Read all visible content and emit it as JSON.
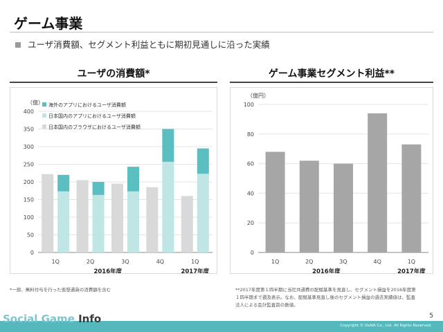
{
  "page": {
    "title": "ゲーム事業",
    "bullet": "ユーザ消費額、セグメント利益ともに期初見通しに沿った実績",
    "page_number": "5",
    "copyright": "Copyright © DeNA Co., Ltd. All Rights Reserved.",
    "watermark_part1": "Social Game ",
    "watermark_part2": "Info"
  },
  "left_panel": {
    "title": "ユーザの消費額*",
    "note": "*一部、無料付与を行った仮想通貨の消費額を含む"
  },
  "right_panel": {
    "title": "ゲーム事業セグメント利益**",
    "note_line1": "**2017年度第１四半期に当社共通費の配賦基準を見直し、セグメント損益を2016年度第",
    "note_line2": "１四半期まで遡及表示。なお、配賦基準見直し後のセグメント損益の過去実績値は、監査",
    "note_line3": "法人による会計監査前の数値。"
  },
  "chart_data": [
    {
      "type": "bar",
      "ylabel": "（億）",
      "ylim": [
        0,
        400
      ],
      "yticks": [
        0,
        50,
        100,
        150,
        200,
        250,
        300,
        350,
        400
      ],
      "categories": [
        "1Q",
        "2Q",
        "3Q",
        "4Q",
        "1Q"
      ],
      "period_labels": [
        {
          "label": "2016年度",
          "span": [
            0,
            3
          ]
        },
        {
          "label": "2017年度",
          "span": [
            4,
            4
          ]
        }
      ],
      "legend_placement": "top-left",
      "series": [
        {
          "name": "海外のアプリにおけるユーザ消費額",
          "color": "#5bbfc1",
          "role": "stack-top",
          "values": [
            47,
            37,
            70,
            93,
            72
          ]
        },
        {
          "name": "日本国内のアプリにおけるユーザ消費額",
          "color": "#bfe5e4",
          "role": "stack-base",
          "values": [
            173,
            163,
            173,
            257,
            223
          ]
        },
        {
          "name": "日本国内のブラウザにおけるユーザ消費額",
          "color": "#d9d9d9",
          "role": "single",
          "values": [
            222,
            205,
            195,
            185,
            160
          ]
        }
      ]
    },
    {
      "type": "bar",
      "ylabel": "（億円）",
      "ylim": [
        0,
        100
      ],
      "yticks": [
        0,
        20,
        40,
        60,
        80,
        100
      ],
      "categories": [
        "1Q",
        "2Q",
        "3Q",
        "4Q",
        "1Q"
      ],
      "period_labels": [
        {
          "label": "2016年度",
          "span": [
            0,
            3
          ]
        },
        {
          "label": "2017年度",
          "span": [
            4,
            4
          ]
        }
      ],
      "series": [
        {
          "color": "#a6a6a6",
          "values": [
            68,
            62,
            60,
            94,
            73
          ]
        }
      ]
    }
  ]
}
